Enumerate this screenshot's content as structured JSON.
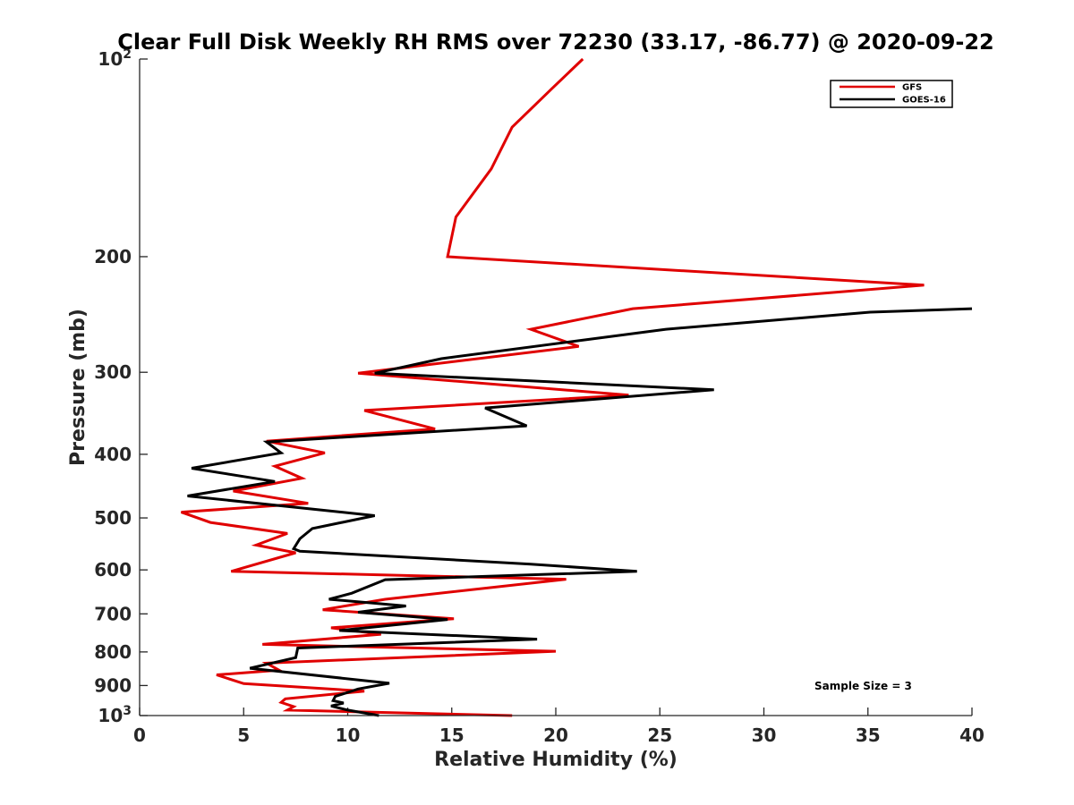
{
  "chart_data": {
    "type": "line",
    "title": "Clear Full Disk Weekly RH RMS over 72230 (33.17, -86.77) @ 2020-09-22",
    "xlabel": "Relative Humidity (%)",
    "ylabel": "Pressure (mb)",
    "xlim": [
      0,
      40
    ],
    "ylim": [
      100,
      1000
    ],
    "yscale": "log",
    "yreversed": true,
    "grid": false,
    "x_ticks": [
      "0",
      "5",
      "10",
      "15",
      "20",
      "25",
      "30",
      "35",
      "40"
    ],
    "x_tick_values": [
      0,
      5,
      10,
      15,
      20,
      25,
      30,
      35,
      40
    ],
    "y_ticks": [
      {
        "value": 100,
        "base": "10",
        "exp": "2"
      },
      {
        "value": 200,
        "label": "200"
      },
      {
        "value": 300,
        "label": "300"
      },
      {
        "value": 400,
        "label": "400"
      },
      {
        "value": 500,
        "label": "500"
      },
      {
        "value": 600,
        "label": "600"
      },
      {
        "value": 700,
        "label": "700"
      },
      {
        "value": 800,
        "label": "800"
      },
      {
        "value": 900,
        "label": "900"
      },
      {
        "value": 1000,
        "base": "10",
        "exp": "3"
      }
    ],
    "legend_position": "top-right",
    "annotation": "Sample Size = 3",
    "series": [
      {
        "name": "GFS",
        "color": "#e00000",
        "x": [
          21.3,
          19.8,
          17.9,
          16.9,
          15.2,
          14.8,
          37.7,
          23.7,
          18.8,
          21.1,
          10.5,
          23.5,
          10.8,
          14.2,
          6.1,
          8.9,
          6.5,
          7.8,
          4.5,
          8.1,
          2.0,
          3.4,
          7.1,
          5.6,
          7.5,
          4.4,
          20.5,
          11.8,
          8.8,
          15.1,
          9.2,
          11.6,
          5.9,
          20.0,
          6.1,
          6.7,
          3.7,
          5.0,
          10.8,
          7.0,
          6.8,
          7.4,
          7.1,
          17.9
        ],
        "y": [
          100,
          111,
          127,
          147,
          174,
          200,
          221,
          240,
          258,
          274,
          301,
          325,
          343,
          366,
          382,
          398,
          417,
          435,
          455,
          475,
          490,
          508,
          528,
          550,
          565,
          603,
          620,
          665,
          690,
          712,
          735,
          752,
          779,
          798,
          832,
          853,
          867,
          894,
          918,
          943,
          955,
          969,
          981,
          1000
        ]
      },
      {
        "name": "GOES-16",
        "color": "#000000",
        "x": [
          40.0,
          35.1,
          25.3,
          14.5,
          11.3,
          27.6,
          16.6,
          18.6,
          6.1,
          6.8,
          2.5,
          6.5,
          2.3,
          11.3,
          8.3,
          7.7,
          7.4,
          7.7,
          18.8,
          23.9,
          11.8,
          10.2,
          9.1,
          12.8,
          10.5,
          14.8,
          9.6,
          19.1,
          7.6,
          7.5,
          5.3,
          12.0,
          10.5,
          9.4,
          9.3,
          9.8,
          9.2,
          10.0,
          11.5
        ],
        "y": [
          240,
          243,
          258,
          286,
          301,
          319,
          340,
          362,
          383,
          398,
          420,
          440,
          463,
          496,
          519,
          538,
          557,
          562,
          588,
          603,
          621,
          651,
          665,
          681,
          696,
          714,
          742,
          765,
          789,
          816,
          847,
          893,
          911,
          935,
          949,
          957,
          967,
          981,
          1000
        ]
      }
    ]
  }
}
